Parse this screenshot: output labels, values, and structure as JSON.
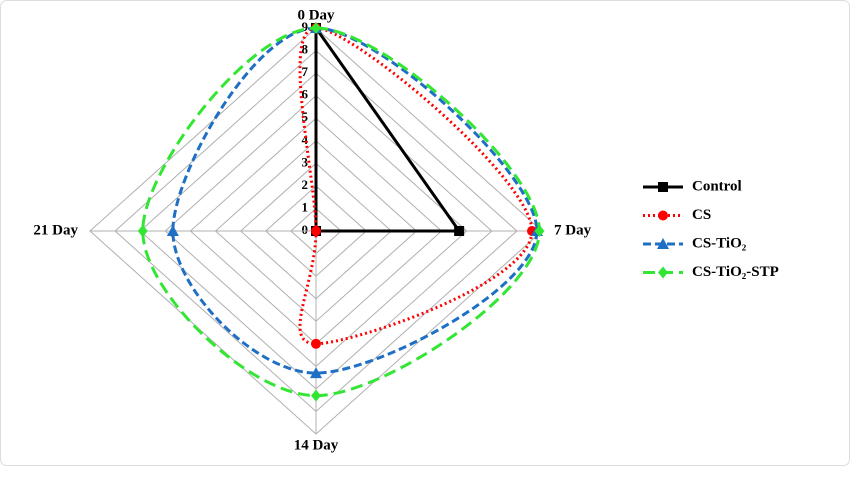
{
  "chart_data": {
    "type": "radar",
    "categories": [
      "0 Day",
      "7 Day",
      "14 Day",
      "21 Day"
    ],
    "ylim": [
      0,
      9
    ],
    "yticks": [
      0,
      1,
      2,
      3,
      4,
      5,
      6,
      7,
      8,
      9
    ],
    "grid": true,
    "legend": "right",
    "series": [
      {
        "name": "Control",
        "color": "#000000",
        "line_style": "solid",
        "marker": "square",
        "smooth": false,
        "values": [
          9,
          5.7,
          0,
          0
        ]
      },
      {
        "name": "CS",
        "color": "#ff0000",
        "line_style": "dotted",
        "marker": "circle",
        "smooth": true,
        "values": [
          9,
          8.6,
          5.0,
          0
        ]
      },
      {
        "name": "CS-TiO₂",
        "color": "#1f6fc5",
        "line_style": "dashed",
        "marker": "triangle",
        "smooth": true,
        "values": [
          9,
          8.8,
          6.3,
          5.7
        ]
      },
      {
        "name": "CS-TiO₂-STP",
        "color": "#33e633",
        "line_style": "long-dashed",
        "marker": "diamond",
        "smooth": true,
        "values": [
          9,
          8.9,
          7.3,
          6.9
        ]
      }
    ]
  }
}
